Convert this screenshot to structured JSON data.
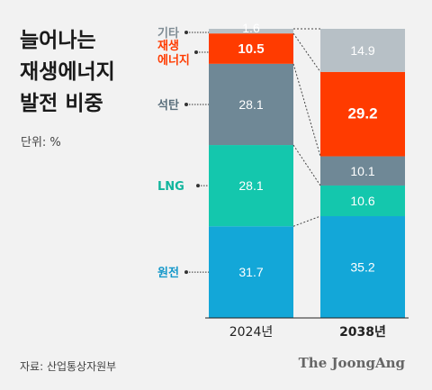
{
  "title_lines": [
    "늘어나는",
    "재생에너지",
    "발전 비중"
  ],
  "unit": "단위: %",
  "source": "자료: 산업통상자원부",
  "brand": "The JoongAng",
  "colors": {
    "기타": "#b7c0c6",
    "재생에너지": "#ff3b00",
    "석탄": "#6f8896",
    "LNG": "#14c7ad",
    "원전": "#13a7d8"
  },
  "label_colors": {
    "기타": "#7f8c94",
    "재생에너지": "#ff3b00",
    "석탄": "#5a6f7c",
    "LNG": "#11b59d",
    "원전": "#1397c9"
  },
  "chart_data": {
    "type": "bar",
    "stacked": true,
    "categories": [
      "2024년",
      "2038년"
    ],
    "series": [
      {
        "name": "원전",
        "values": [
          31.7,
          35.2
        ]
      },
      {
        "name": "LNG",
        "values": [
          28.1,
          10.6
        ]
      },
      {
        "name": "석탄",
        "values": [
          28.1,
          10.1
        ]
      },
      {
        "name": "재생에너지",
        "values": [
          10.5,
          29.2
        ]
      },
      {
        "name": "기타",
        "values": [
          1.6,
          14.9
        ]
      }
    ],
    "category_labels": [
      "재생에너지",
      "LNG",
      "석탄",
      "원전",
      "기타"
    ],
    "ylim": [
      0,
      100
    ]
  }
}
